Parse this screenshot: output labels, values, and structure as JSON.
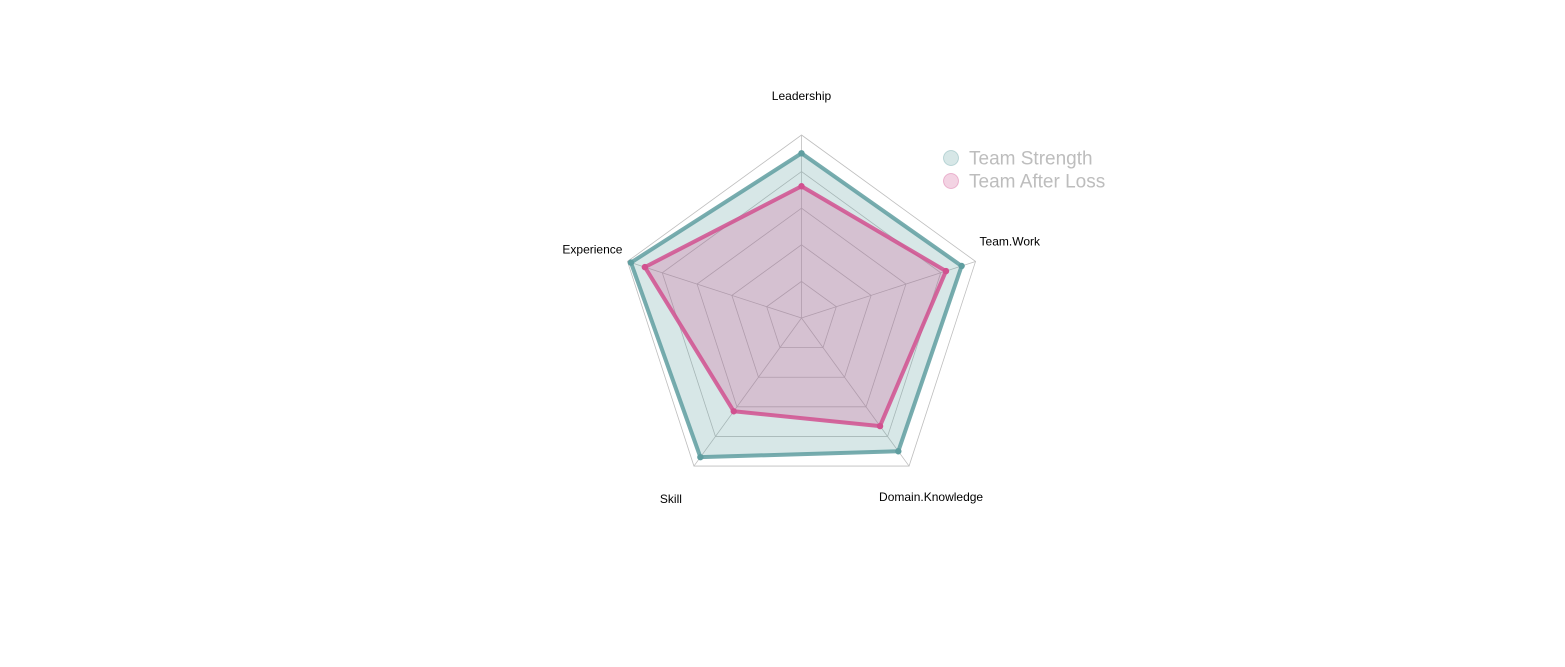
{
  "chart_data": {
    "type": "radar",
    "axes": [
      "Leadership",
      "Team.Work",
      "Domain.Knowledge",
      "Skill",
      "Experience"
    ],
    "range": [
      0,
      100
    ],
    "grid_levels": 5,
    "series": [
      {
        "name": "Team Strength",
        "values": [
          90,
          92,
          90,
          94,
          98
        ],
        "color": "#5f9ea0"
      },
      {
        "name": "Team After Loss",
        "values": [
          72,
          83,
          73,
          63,
          90
        ],
        "color": "#d1508f"
      }
    ],
    "legend_position": "top-right",
    "legend_text_color": "#bdbdbd",
    "grid_color": "#bebebe"
  }
}
